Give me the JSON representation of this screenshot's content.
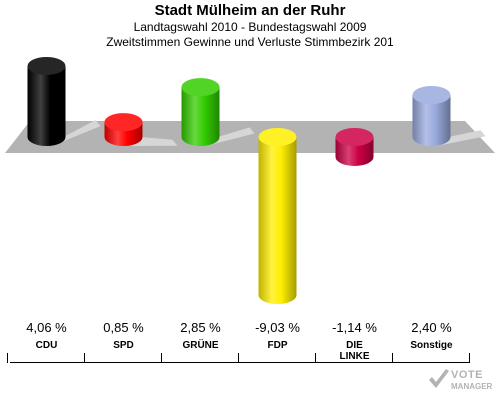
{
  "header": {
    "title": "Stadt Mülheim an der Ruhr",
    "subtitle1": "Landtagswahl 2010 - Bundestagswahl 2009",
    "subtitle2": "Zweitstimmen Gewinne und Verluste Stimmbezirk 201"
  },
  "chart_data": {
    "type": "bar",
    "title": "Stadt Mülheim an der Ruhr",
    "categories": [
      "CDU",
      "SPD",
      "GRÜNE",
      "FDP",
      "DIE LINKE",
      "Sonstige"
    ],
    "category_lines": [
      [
        "CDU"
      ],
      [
        "SPD"
      ],
      [
        "GRÜNE"
      ],
      [
        "FDP"
      ],
      [
        "DIE",
        "LINKE"
      ],
      [
        "Sonstige"
      ]
    ],
    "values": [
      4.06,
      0.85,
      2.85,
      -9.03,
      -1.14,
      2.4
    ],
    "value_labels": [
      "4,06 %",
      "0,85 %",
      "2,85 %",
      "-9,03 %",
      "-1,14 %",
      "2,40 %"
    ],
    "unit": "%",
    "colors": [
      "#000000",
      "#ff0000",
      "#33cc00",
      "#ffee00",
      "#cc0044",
      "#99aadd"
    ],
    "style": "3d-cylinders",
    "baseline_plane_color": "#b3b3b3",
    "grid": false,
    "legend": "none"
  },
  "logo": {
    "line1": "VOTE",
    "line2": "MANAGER",
    "color": "#b3b3b3"
  }
}
